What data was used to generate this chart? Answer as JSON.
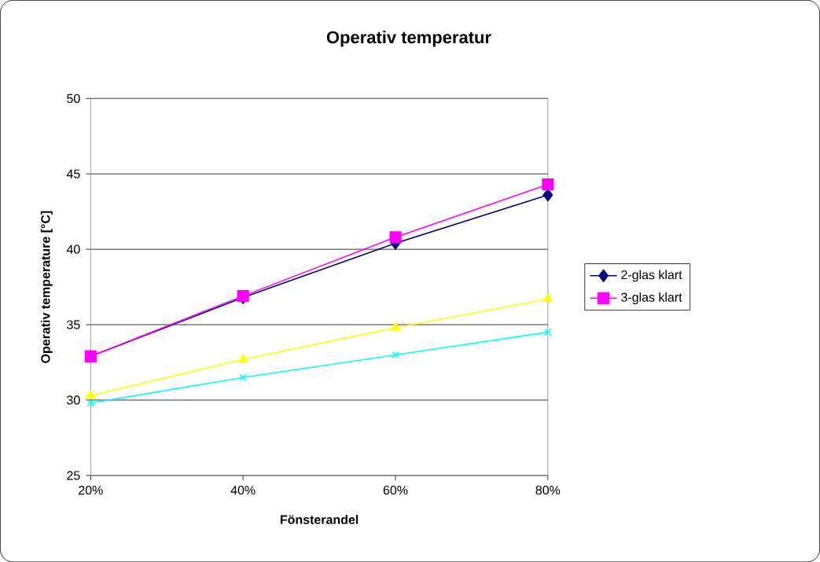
{
  "chart_data": {
    "type": "line",
    "title": "Operativ temperatur",
    "xlabel": "Fönsterandel",
    "ylabel": "Operativ temperature [°C]",
    "categories": [
      "20%",
      "40%",
      "60%",
      "80%"
    ],
    "series": [
      {
        "name": "2-glas klart",
        "color": "#000080",
        "marker": "diamond",
        "values": [
          32.9,
          36.8,
          40.4,
          43.6
        ]
      },
      {
        "name": "3-glas klart",
        "color": "#ff00ff",
        "marker": "square",
        "values": [
          32.9,
          36.9,
          40.8,
          44.3
        ]
      },
      {
        "color": "#ffff00",
        "marker": "triangle",
        "values": [
          30.3,
          32.7,
          34.8,
          36.7
        ]
      },
      {
        "color": "#00ffff",
        "marker": "cross",
        "values": [
          29.8,
          31.5,
          33.0,
          34.5
        ]
      }
    ],
    "ylim": [
      25,
      50
    ],
    "yticks": [
      25,
      30,
      35,
      40,
      45,
      50
    ],
    "grid": "y",
    "legend": "right"
  }
}
